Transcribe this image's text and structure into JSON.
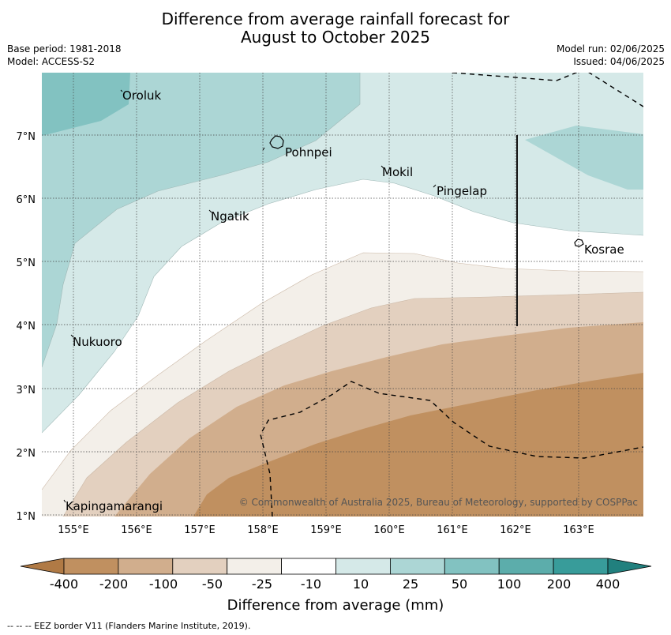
{
  "header": {
    "title_line1": "Difference from average rainfall forecast for",
    "title_line2": "August to October 2025",
    "base_period": "Base period: 1981-2018",
    "model": "Model: ACCESS-S2",
    "model_run": "Model run: 02/06/2025",
    "issued": "Issued: 04/06/2025"
  },
  "map": {
    "lon_ticks": [
      "155°E",
      "156°E",
      "157°E",
      "158°E",
      "159°E",
      "160°E",
      "161°E",
      "162°E",
      "163°E"
    ],
    "lat_ticks": [
      "7°N",
      "6°N",
      "5°N",
      "4°N",
      "3°N",
      "2°N",
      "1°N"
    ],
    "places": [
      "Oroluk",
      "Pohnpei",
      "Mokil",
      "Pingelap",
      "Ngatik",
      "Kosrae",
      "Nukuoro",
      "Kapingamarangi"
    ],
    "copyright": "© Commonwealth of Australia 2025, Bureau of Meteorology, supported by COSPPac"
  },
  "legend": {
    "labels": [
      "-400",
      "-200",
      "-100",
      "-50",
      "-25",
      "-10",
      "10",
      "25",
      "50",
      "100",
      "200",
      "400"
    ],
    "colors": [
      "#b07a45",
      "#c09060",
      "#d1ae8d",
      "#e3d0bf",
      "#f3efe9",
      "#ffffff",
      "#d5e9e8",
      "#acd6d5",
      "#82c2c1",
      "#5cadab",
      "#389c9a",
      "#21807e"
    ],
    "title": "Difference from average (mm)"
  },
  "footer": {
    "eez_note": "--  --  -- EEZ border V11 (Flanders Marine Institute, 2019)."
  }
}
